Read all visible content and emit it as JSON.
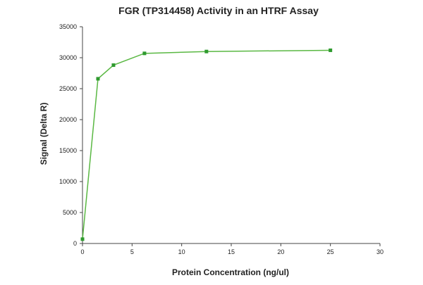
{
  "chart_data": {
    "type": "line",
    "title": "FGR (TP314458) Activity in an HTRF Assay",
    "xlabel": "Protein Concentration (ng/ul)",
    "ylabel": "Signal (Delta R)",
    "xlim": [
      0,
      30
    ],
    "ylim": [
      0,
      35000
    ],
    "x_ticks": [
      0,
      5,
      10,
      15,
      20,
      25,
      30
    ],
    "y_ticks": [
      0,
      5000,
      10000,
      15000,
      20000,
      25000,
      30000,
      35000
    ],
    "grid": false,
    "legend": "none",
    "series": [
      {
        "color": "#5ab843",
        "marker_color": "#2e9a2e",
        "x": [
          0,
          1.5625,
          3.125,
          6.25,
          12.5,
          25
        ],
        "y": [
          700,
          26600,
          28800,
          30700,
          31000,
          31200
        ]
      }
    ]
  }
}
